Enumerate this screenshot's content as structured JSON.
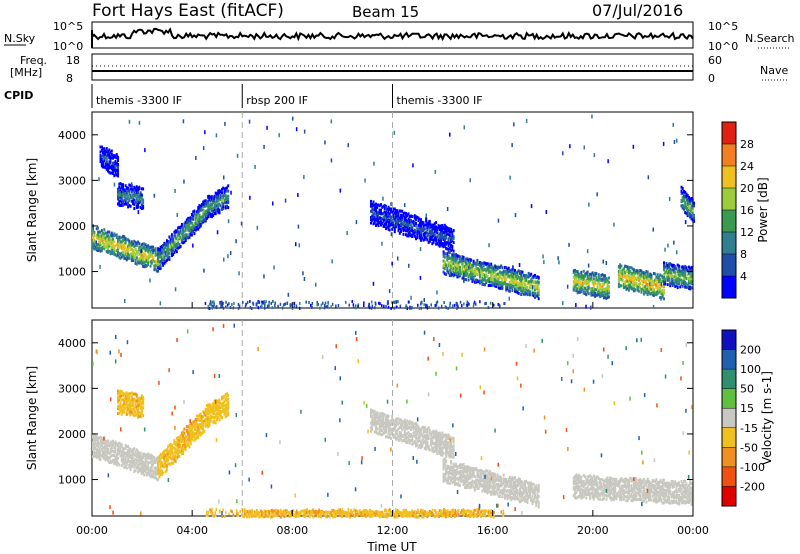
{
  "header": {
    "station": "Fort Hays East (fitACF)",
    "beam": "Beam 15",
    "date": "07/Jul/2016"
  },
  "top_panels": {
    "nsky_label": "N.Sky",
    "nsearch_label": "N.Search",
    "nsky_ticks": [
      "10^5",
      "10^0"
    ],
    "nsky_right_ticks": [
      "10^5",
      "10^0"
    ],
    "freq_label_1": "Freq.",
    "freq_label_2": "[MHz]",
    "freq_ticks": [
      "18",
      "8"
    ],
    "nave_label": "Nave",
    "nave_ticks": [
      "60",
      "0"
    ],
    "cpid_label": "CPID",
    "cpid_segments": [
      {
        "label": "themis -3300 IF",
        "start_hour": 0,
        "end_hour": 6
      },
      {
        "label": "rbsp 200 IF",
        "start_hour": 6,
        "end_hour": 12
      },
      {
        "label": "themis -3300 IF",
        "start_hour": 12,
        "end_hour": 24
      }
    ]
  },
  "chart_data": [
    {
      "type": "heatmap",
      "title": "",
      "xlabel": "",
      "ylabel": "Slant Range [km]",
      "xlim": [
        0,
        24
      ],
      "ylim": [
        200,
        4500
      ],
      "yticks": [
        1000,
        2000,
        3000,
        4000
      ],
      "colorbar_label": "Power [dB]",
      "colorbar_ticks": [
        4,
        8,
        12,
        16,
        20,
        24,
        28
      ],
      "colorbar_range": [
        0,
        32
      ],
      "colorbar_colors": [
        "#0000ff",
        "#1f4fa8",
        "#2f7f8f",
        "#3a9a4f",
        "#9ccc3a",
        "#f0c020",
        "#f08020",
        "#e02010"
      ],
      "features": [
        {
          "from_hour": 0.0,
          "to_hour": 2.6,
          "range_start": 1750,
          "range_end": 1250,
          "value": 22
        },
        {
          "from_hour": 2.6,
          "to_hour": 4.6,
          "range_start": 1250,
          "range_end": 2400,
          "value": 16
        },
        {
          "from_hour": 4.6,
          "to_hour": 5.4,
          "range_start": 2400,
          "range_end": 2650,
          "value": 14
        },
        {
          "from_hour": 0.3,
          "to_hour": 1.0,
          "range_start": 3550,
          "range_end": 3300,
          "value": 6
        },
        {
          "from_hour": 1.0,
          "to_hour": 2.0,
          "range_start": 2700,
          "range_end": 2600,
          "value": 12
        },
        {
          "from_hour": 11.1,
          "to_hour": 14.4,
          "range_start": 2300,
          "range_end": 1700,
          "value": 8
        },
        {
          "from_hour": 14.0,
          "to_hour": 17.8,
          "range_start": 1200,
          "range_end": 650,
          "value": 20
        },
        {
          "from_hour": 19.2,
          "to_hour": 20.6,
          "range_start": 800,
          "range_end": 650,
          "value": 22
        },
        {
          "from_hour": 21.0,
          "to_hour": 22.8,
          "range_start": 900,
          "range_end": 650,
          "value": 24
        },
        {
          "from_hour": 22.8,
          "to_hour": 23.9,
          "range_start": 950,
          "range_end": 850,
          "value": 18
        },
        {
          "from_hour": 23.5,
          "to_hour": 24.0,
          "range_start": 2600,
          "range_end": 2300,
          "value": 16
        }
      ]
    },
    {
      "type": "heatmap",
      "title": "",
      "xlabel": "Time UT",
      "ylabel": "Slant Range [km]",
      "xlim": [
        0,
        24
      ],
      "ylim": [
        200,
        4500
      ],
      "yticks": [
        1000,
        2000,
        3000,
        4000
      ],
      "xticks": [
        "00:00",
        "04:00",
        "08:00",
        "12:00",
        "16:00",
        "20:00",
        "00:00"
      ],
      "colorbar_label": "Velocity [m s-1]",
      "colorbar_ticks": [
        "200",
        "100",
        "50",
        "15",
        "-15",
        "-50",
        "-100",
        "-200"
      ],
      "colorbar_colors": [
        "#1010c0",
        "#2060b0",
        "#2f8f6f",
        "#5fc03f",
        "#c8c8c0",
        "#f0c020",
        "#f09020",
        "#f05010",
        "#e00000"
      ],
      "features": [
        {
          "from_hour": 0.0,
          "to_hour": 2.6,
          "range_start": 1750,
          "range_end": 1250,
          "value": 0
        },
        {
          "from_hour": 2.6,
          "to_hour": 4.6,
          "range_start": 1250,
          "range_end": 2400,
          "value": -40
        },
        {
          "from_hour": 4.6,
          "to_hour": 5.4,
          "range_start": 2400,
          "range_end": 2650,
          "value": -30
        },
        {
          "from_hour": 1.0,
          "to_hour": 2.0,
          "range_start": 2700,
          "range_end": 2600,
          "value": -40
        },
        {
          "from_hour": 11.1,
          "to_hour": 14.4,
          "range_start": 2300,
          "range_end": 1700,
          "value": 0
        },
        {
          "from_hour": 14.0,
          "to_hour": 17.8,
          "range_start": 1200,
          "range_end": 650,
          "value": 0
        },
        {
          "from_hour": 19.2,
          "to_hour": 23.9,
          "range_start": 850,
          "range_end": 700,
          "value": 0
        },
        {
          "from_hour": 6.0,
          "to_hour": 16.0,
          "range_start": 250,
          "range_end": 250,
          "value": -40
        }
      ]
    }
  ]
}
